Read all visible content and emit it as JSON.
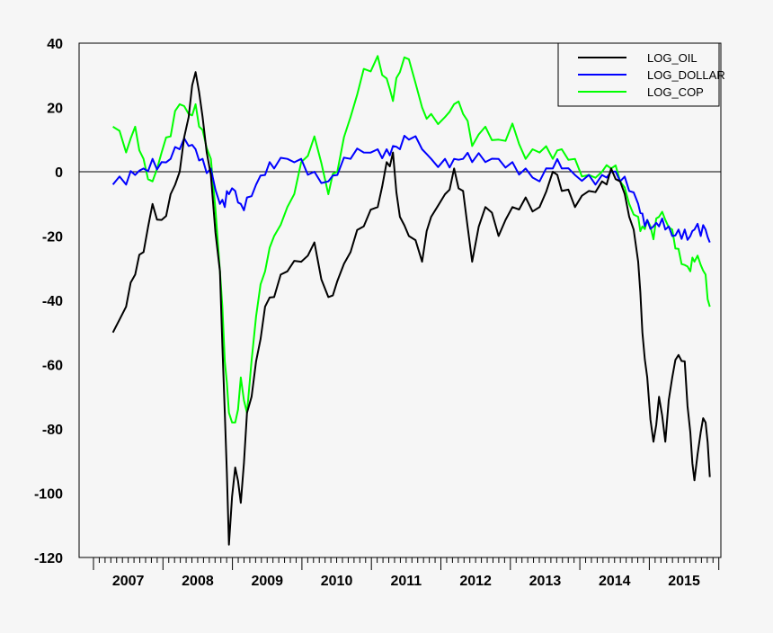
{
  "chart_data": {
    "type": "line",
    "title": "",
    "xlabel": "",
    "ylabel": "",
    "xlim": [
      2006.8,
      2016.03
    ],
    "ylim": [
      -120,
      40
    ],
    "yticks": [
      "40",
      "20",
      "0",
      "-20",
      "-40",
      "-60",
      "-80",
      "-100",
      "-120"
    ],
    "ytick_values": [
      40,
      20,
      0,
      -20,
      -40,
      -60,
      -80,
      -100,
      -120
    ],
    "xtick_labels": [
      "2007",
      "2008",
      "2009",
      "2010",
      "2011",
      "2012",
      "2013",
      "2014",
      "2015"
    ],
    "zero_line": true,
    "grid": false,
    "legend_position": "top-right",
    "x": [
      2007.28,
      2007.47,
      2007.6,
      2007.72,
      2007.85,
      2007.98,
      2008.11,
      2008.24,
      2008.37,
      2008.47,
      2008.57,
      2008.69,
      2008.82,
      2008.89,
      2008.95,
      2009.04,
      2009.12,
      2009.21,
      2009.34,
      2009.47,
      2009.6,
      2009.79,
      2009.99,
      2010.18,
      2010.38,
      2010.51,
      2010.7,
      2010.89,
      2011.09,
      2011.22,
      2011.31,
      2011.41,
      2011.54,
      2011.73,
      2011.86,
      2012.06,
      2012.19,
      2012.32,
      2012.45,
      2012.64,
      2012.83,
      2013.03,
      2013.22,
      2013.42,
      2013.61,
      2013.74,
      2013.93,
      2014.13,
      2014.32,
      2014.45,
      2014.58,
      2014.71,
      2014.84,
      2014.9,
      2014.97,
      2015.06,
      2015.14,
      2015.23,
      2015.33,
      2015.42,
      2015.51,
      2015.59,
      2015.65,
      2015.74,
      2015.81,
      2015.87
    ],
    "series": [
      {
        "name": "LOG_OIL",
        "color": "#000000",
        "values": [
          -50,
          -42,
          -32,
          -25,
          -10,
          -15,
          -7,
          0,
          17,
          31,
          17,
          -1,
          -31,
          -75,
          -116,
          -92,
          -103,
          -75,
          -59,
          -42,
          -39,
          -31,
          -28,
          -22,
          -39,
          -34,
          -25,
          -17,
          -11,
          3,
          6,
          -14,
          -20,
          -28,
          -14,
          -7,
          1,
          -6,
          -28,
          -11,
          -20,
          -11,
          -8,
          -11,
          0,
          -6,
          -11,
          -6,
          -3,
          1,
          -3,
          -14,
          -28,
          -50,
          -64,
          -84,
          -70,
          -84,
          -64,
          -57,
          -59,
          -81,
          -96,
          -81,
          -78,
          -95
        ]
      },
      {
        "name": "LOG_DOLLAR",
        "color": "#0000ff",
        "values": [
          -4,
          -4,
          -1,
          1,
          4,
          3,
          4,
          7,
          8,
          7,
          4,
          1,
          -10,
          -11,
          -7,
          -6,
          -10,
          -8,
          -4,
          -1,
          1,
          4,
          4,
          0,
          -3,
          -1,
          4,
          6,
          7,
          7,
          8,
          7,
          10,
          7,
          4,
          4,
          4,
          4,
          3,
          3,
          4,
          3,
          1,
          -3,
          1,
          1,
          -1,
          -1,
          -1,
          0,
          -3,
          -6,
          -10,
          -13,
          -15,
          -17,
          -17,
          -18,
          -20,
          -18,
          -18,
          -20,
          -18,
          -20,
          -18,
          -22
        ]
      },
      {
        "name": "LOG_COP",
        "color": "#00ff00",
        "values": [
          14,
          6,
          14,
          4,
          -3,
          6,
          11,
          21,
          18,
          21,
          13,
          4,
          -31,
          -59,
          -75,
          -78,
          -64,
          -75,
          -45,
          -31,
          -20,
          -11,
          3,
          11,
          -7,
          0,
          17,
          32,
          36,
          29,
          22,
          31,
          35,
          20,
          18,
          17,
          21,
          18,
          8,
          14,
          10,
          15,
          4,
          6,
          4,
          7,
          4,
          -1,
          0,
          1,
          -3,
          -10,
          -14,
          -17,
          -15,
          -21,
          -14,
          -15,
          -18,
          -24,
          -29,
          -31,
          -28,
          -29,
          -32,
          -42
        ]
      }
    ]
  }
}
